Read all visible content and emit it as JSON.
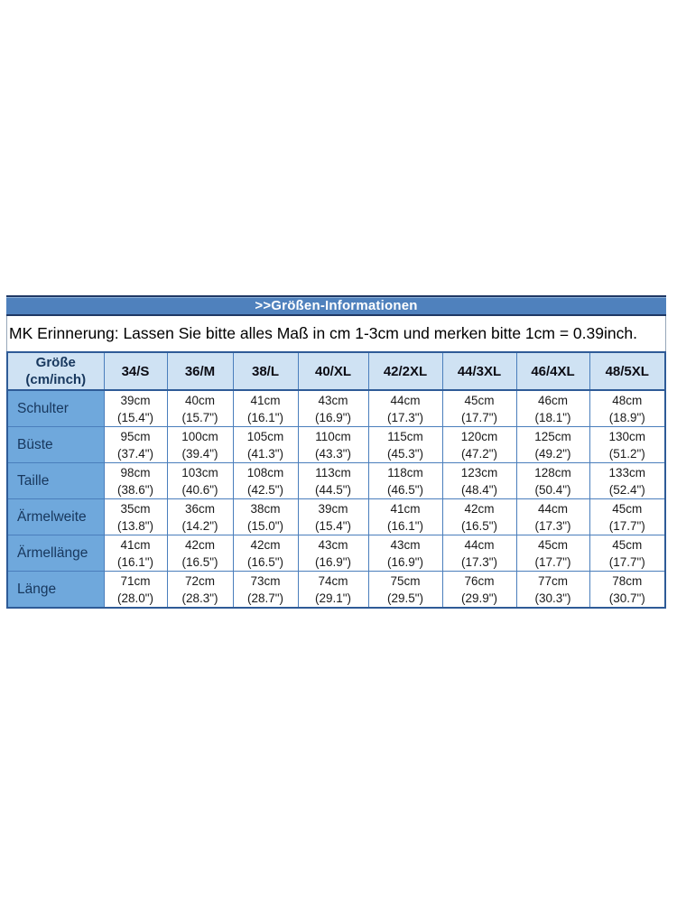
{
  "title_bar": {
    "label": ">>Größen-Informationen"
  },
  "note": {
    "text": "MK Erinnerung: Lassen Sie bitte alles Maß in cm 1-3cm und merken bitte 1cm = 0.39inch."
  },
  "size_table": {
    "corner": {
      "line1": "Größe",
      "line2": "(cm/inch)"
    },
    "columns": [
      "34/S",
      "36/M",
      "38/L",
      "40/XL",
      "42/2XL",
      "44/3XL",
      "46/4XL",
      "48/5XL"
    ],
    "rows": [
      {
        "label": "Schulter",
        "cells": [
          {
            "cm": "39cm",
            "inch": "(15.4\")"
          },
          {
            "cm": "40cm",
            "inch": "(15.7\")"
          },
          {
            "cm": "41cm",
            "inch": "(16.1\")"
          },
          {
            "cm": "43cm",
            "inch": "(16.9\")"
          },
          {
            "cm": "44cm",
            "inch": "(17.3\")"
          },
          {
            "cm": "45cm",
            "inch": "(17.7\")"
          },
          {
            "cm": "46cm",
            "inch": "(18.1\")"
          },
          {
            "cm": "48cm",
            "inch": "(18.9\")"
          }
        ]
      },
      {
        "label": "Büste",
        "cells": [
          {
            "cm": "95cm",
            "inch": "(37.4\")"
          },
          {
            "cm": "100cm",
            "inch": "(39.4\")"
          },
          {
            "cm": "105cm",
            "inch": "(41.3\")"
          },
          {
            "cm": "110cm",
            "inch": "(43.3\")"
          },
          {
            "cm": "115cm",
            "inch": "(45.3\")"
          },
          {
            "cm": "120cm",
            "inch": "(47.2\")"
          },
          {
            "cm": "125cm",
            "inch": "(49.2\")"
          },
          {
            "cm": "130cm",
            "inch": "(51.2\")"
          }
        ]
      },
      {
        "label": "Taille",
        "cells": [
          {
            "cm": "98cm",
            "inch": "(38.6\")"
          },
          {
            "cm": "103cm",
            "inch": "(40.6\")"
          },
          {
            "cm": "108cm",
            "inch": "(42.5\")"
          },
          {
            "cm": "113cm",
            "inch": "(44.5\")"
          },
          {
            "cm": "118cm",
            "inch": "(46.5\")"
          },
          {
            "cm": "123cm",
            "inch": "(48.4\")"
          },
          {
            "cm": "128cm",
            "inch": "(50.4\")"
          },
          {
            "cm": "133cm",
            "inch": "(52.4\")"
          }
        ]
      },
      {
        "label": "Ärmelweite",
        "cells": [
          {
            "cm": "35cm",
            "inch": "(13.8\")"
          },
          {
            "cm": "36cm",
            "inch": "(14.2\")"
          },
          {
            "cm": "38cm",
            "inch": "(15.0\")"
          },
          {
            "cm": "39cm",
            "inch": "(15.4\")"
          },
          {
            "cm": "41cm",
            "inch": "(16.1\")"
          },
          {
            "cm": "42cm",
            "inch": "(16.5\")"
          },
          {
            "cm": "44cm",
            "inch": "(17.3\")"
          },
          {
            "cm": "45cm",
            "inch": "(17.7\")"
          }
        ]
      },
      {
        "label": "Ärmellänge",
        "cells": [
          {
            "cm": "41cm",
            "inch": "(16.1\")"
          },
          {
            "cm": "42cm",
            "inch": "(16.5\")"
          },
          {
            "cm": "42cm",
            "inch": "(16.5\")"
          },
          {
            "cm": "43cm",
            "inch": "(16.9\")"
          },
          {
            "cm": "43cm",
            "inch": "(16.9\")"
          },
          {
            "cm": "44cm",
            "inch": "(17.3\")"
          },
          {
            "cm": "45cm",
            "inch": "(17.7\")"
          },
          {
            "cm": "45cm",
            "inch": "(17.7\")"
          }
        ]
      },
      {
        "label": "Länge",
        "cells": [
          {
            "cm": "71cm",
            "inch": "(28.0\")"
          },
          {
            "cm": "72cm",
            "inch": "(28.3\")"
          },
          {
            "cm": "73cm",
            "inch": "(28.7\")"
          },
          {
            "cm": "74cm",
            "inch": "(29.1\")"
          },
          {
            "cm": "75cm",
            "inch": "(29.5\")"
          },
          {
            "cm": "76cm",
            "inch": "(29.9\")"
          },
          {
            "cm": "77cm",
            "inch": "(30.3\")"
          },
          {
            "cm": "78cm",
            "inch": "(30.7\")"
          }
        ]
      }
    ]
  },
  "colors": {
    "bar_blue": "#4f81bd",
    "bar_border": "#1f3864",
    "header_bg": "#cfe2f3",
    "label_bg": "#6fa8dc",
    "label_text": "#17375d",
    "grid_border": "#4a7ebc",
    "outer_border": "#2e5b97"
  }
}
